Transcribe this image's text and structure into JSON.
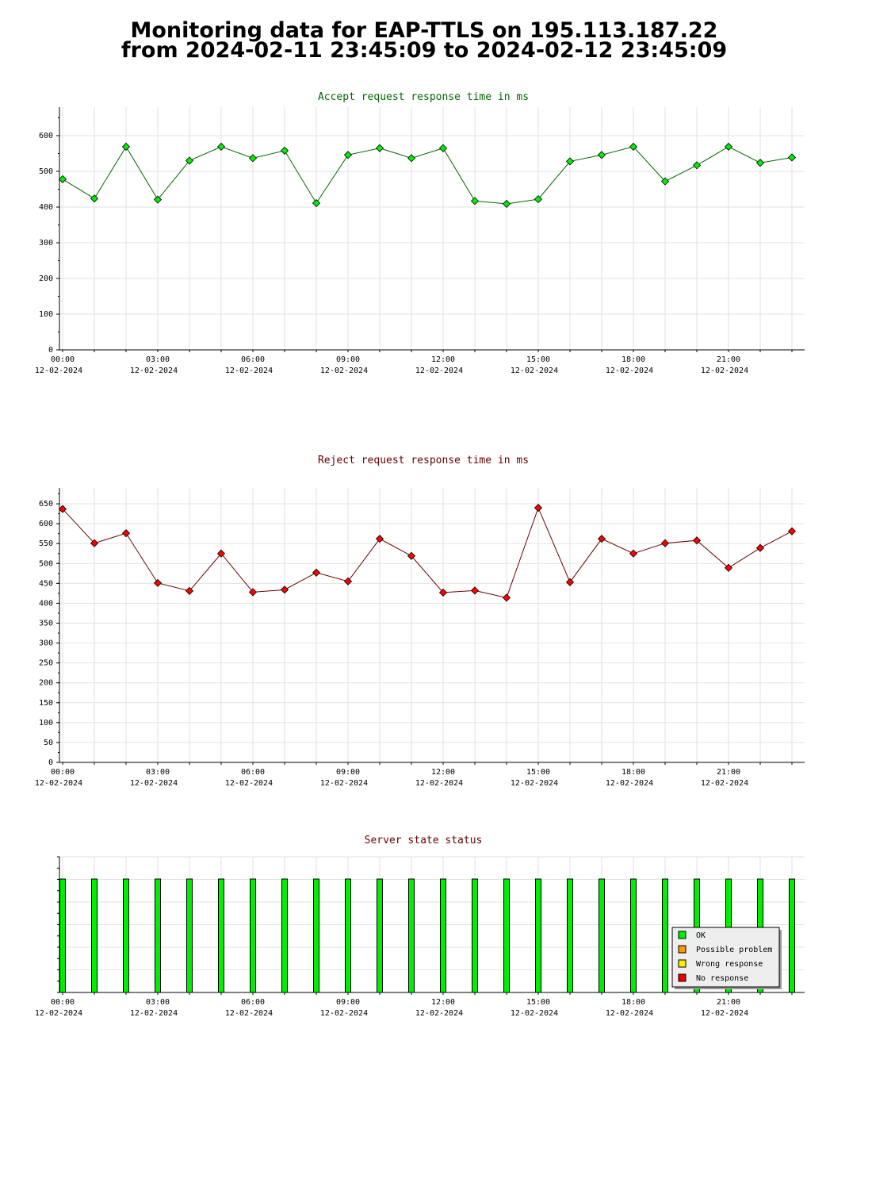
{
  "page": {
    "title_line1": "Monitoring data for EAP-TTLS on 195.113.187.22",
    "title_line2": "from 2024-02-11 23:45:09 to 2024-02-12 23:45:09"
  },
  "chart_data": [
    {
      "type": "line",
      "title": "Accept request response time in ms",
      "title_color": "#006600",
      "line_color": "#006600",
      "marker_color": "#00ee00",
      "ylim": [
        0,
        680
      ],
      "y_ticks": [
        0,
        100,
        200,
        300,
        400,
        500,
        600
      ],
      "x_tick_labels": [
        {
          "time": "00:00",
          "date": "12-02-2024"
        },
        {
          "time": "03:00",
          "date": "12-02-2024"
        },
        {
          "time": "06:00",
          "date": "12-02-2024"
        },
        {
          "time": "09:00",
          "date": "12-02-2024"
        },
        {
          "time": "12:00",
          "date": "12-02-2024"
        },
        {
          "time": "15:00",
          "date": "12-02-2024"
        },
        {
          "time": "18:00",
          "date": "12-02-2024"
        },
        {
          "time": "21:00",
          "date": "12-02-2024"
        }
      ],
      "x_hours": [
        0,
        1,
        2,
        3,
        4,
        5,
        6,
        7,
        8,
        9,
        10,
        11,
        12,
        13,
        14,
        15,
        16,
        17,
        18,
        19,
        20,
        21,
        22,
        23
      ],
      "values": [
        478,
        424,
        569,
        421,
        530,
        569,
        537,
        558,
        411,
        546,
        565,
        537,
        565,
        417,
        409,
        422,
        528,
        546,
        569,
        472,
        517,
        569,
        524,
        539
      ],
      "grid": true
    },
    {
      "type": "line",
      "title": "Reject request response time in ms",
      "title_color": "#660000",
      "line_color": "#660000",
      "marker_color": "#ff0000",
      "ylim": [
        0,
        690
      ],
      "y_ticks": [
        0,
        50,
        100,
        150,
        200,
        250,
        300,
        350,
        400,
        450,
        500,
        550,
        600,
        650
      ],
      "x_tick_labels": [
        {
          "time": "00:00",
          "date": "12-02-2024"
        },
        {
          "time": "03:00",
          "date": "12-02-2024"
        },
        {
          "time": "06:00",
          "date": "12-02-2024"
        },
        {
          "time": "09:00",
          "date": "12-02-2024"
        },
        {
          "time": "12:00",
          "date": "12-02-2024"
        },
        {
          "time": "15:00",
          "date": "12-02-2024"
        },
        {
          "time": "18:00",
          "date": "12-02-2024"
        },
        {
          "time": "21:00",
          "date": "12-02-2024"
        }
      ],
      "x_hours": [
        0,
        1,
        2,
        3,
        4,
        5,
        6,
        7,
        8,
        9,
        10,
        11,
        12,
        13,
        14,
        15,
        16,
        17,
        18,
        19,
        20,
        21,
        22,
        23
      ],
      "values": [
        637,
        551,
        576,
        451,
        431,
        525,
        428,
        434,
        477,
        455,
        562,
        519,
        427,
        432,
        414,
        640,
        453,
        562,
        525,
        551,
        558,
        489,
        539,
        581
      ],
      "grid": true
    },
    {
      "type": "bar",
      "title": "Server state status",
      "title_color": "#660000",
      "x_tick_labels": [
        {
          "time": "00:00",
          "date": "12-02-2024"
        },
        {
          "time": "03:00",
          "date": "12-02-2024"
        },
        {
          "time": "06:00",
          "date": "12-02-2024"
        },
        {
          "time": "09:00",
          "date": "12-02-2024"
        },
        {
          "time": "12:00",
          "date": "12-02-2024"
        },
        {
          "time": "15:00",
          "date": "12-02-2024"
        },
        {
          "time": "18:00",
          "date": "12-02-2024"
        },
        {
          "time": "21:00",
          "date": "12-02-2024"
        }
      ],
      "x_hours": [
        0,
        1,
        2,
        3,
        4,
        5,
        6,
        7,
        8,
        9,
        10,
        11,
        12,
        13,
        14,
        15,
        16,
        17,
        18,
        19,
        20,
        21,
        22,
        23
      ],
      "states": [
        "OK",
        "OK",
        "OK",
        "OK",
        "OK",
        "OK",
        "OK",
        "OK",
        "OK",
        "OK",
        "OK",
        "OK",
        "OK",
        "OK",
        "OK",
        "OK",
        "OK",
        "OK",
        "OK",
        "OK",
        "OK",
        "OK",
        "OK",
        "OK"
      ],
      "legend_position": "bottom-right",
      "legend": [
        {
          "label": "OK",
          "color": "#00ee00"
        },
        {
          "label": "Possible problem",
          "color": "#ff9900"
        },
        {
          "label": "Wrong response",
          "color": "#ffee00"
        },
        {
          "label": "No response",
          "color": "#ee0000"
        }
      ]
    }
  ]
}
